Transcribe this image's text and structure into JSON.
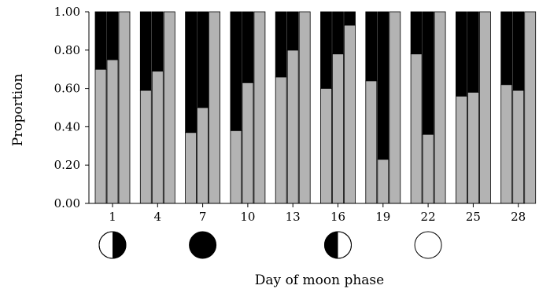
{
  "chart_data": {
    "type": "bar",
    "stacked": true,
    "xlabel": "Day of moon phase",
    "ylabel": "Proportion",
    "ylim": [
      0,
      1
    ],
    "yticks": [
      "0.00",
      "0.20",
      "0.40",
      "0.60",
      "0.80",
      "1.00"
    ],
    "categories": [
      "1",
      "4",
      "7",
      "10",
      "13",
      "16",
      "19",
      "22",
      "25",
      "28"
    ],
    "bars_per_category": 3,
    "series": [
      {
        "color": "#b3b3b3",
        "values": [
          [
            0.7,
            0.75,
            1.0
          ],
          [
            0.59,
            0.69,
            1.0
          ],
          [
            0.37,
            0.5,
            1.0
          ],
          [
            0.38,
            0.63,
            1.0
          ],
          [
            0.66,
            0.8,
            1.0
          ],
          [
            0.6,
            0.78,
            0.93
          ],
          [
            0.64,
            0.23,
            1.0
          ],
          [
            0.78,
            0.36,
            1.0
          ],
          [
            0.56,
            0.58,
            1.0
          ],
          [
            0.62,
            0.59,
            1.0
          ]
        ]
      },
      {
        "color": "#000000",
        "values": [
          [
            0.3,
            0.25,
            0.0
          ],
          [
            0.41,
            0.31,
            0.0
          ],
          [
            0.63,
            0.5,
            0.0
          ],
          [
            0.62,
            0.37,
            0.0
          ],
          [
            0.34,
            0.2,
            0.0
          ],
          [
            0.4,
            0.22,
            0.07
          ],
          [
            0.36,
            0.77,
            0.0
          ],
          [
            0.22,
            0.64,
            0.0
          ],
          [
            0.44,
            0.42,
            0.0
          ],
          [
            0.38,
            0.41,
            0.0
          ]
        ]
      }
    ],
    "moon_phases": [
      {
        "category": "1",
        "phase": "first-quarter"
      },
      {
        "category": "7",
        "phase": "new-moon"
      },
      {
        "category": "16",
        "phase": "last-quarter"
      },
      {
        "category": "22",
        "phase": "full-moon"
      }
    ]
  }
}
